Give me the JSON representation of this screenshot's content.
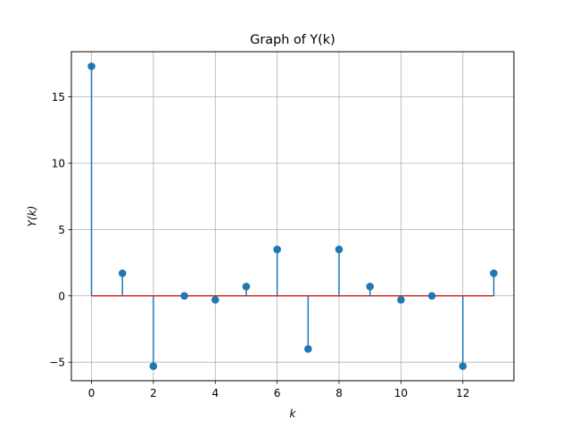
{
  "chart_data": {
    "type": "stem",
    "title": "Graph of Y(k)",
    "xlabel": "k",
    "ylabel": "Y(k)",
    "x": [
      0,
      1,
      2,
      3,
      4,
      5,
      6,
      7,
      8,
      9,
      10,
      11,
      12,
      13
    ],
    "y": [
      17.3,
      1.7,
      -5.3,
      0.0,
      -0.3,
      0.7,
      3.5,
      -4.0,
      3.5,
      0.7,
      -0.3,
      0.0,
      -5.3,
      1.7
    ],
    "xlim": [
      -0.65,
      13.65
    ],
    "ylim": [
      -6.4,
      18.4
    ],
    "xticks": [
      0,
      2,
      4,
      6,
      8,
      10,
      12
    ],
    "yticks": [
      -5,
      0,
      5,
      10,
      15
    ],
    "ytick_labels": [
      "−5",
      "0",
      "5",
      "10",
      "15"
    ],
    "grid": true,
    "baseline": 0,
    "colors": {
      "stem": "#1f77b4",
      "marker": "#1f77b4",
      "baseline": "#d62728",
      "grid": "#b0b0b0"
    }
  }
}
